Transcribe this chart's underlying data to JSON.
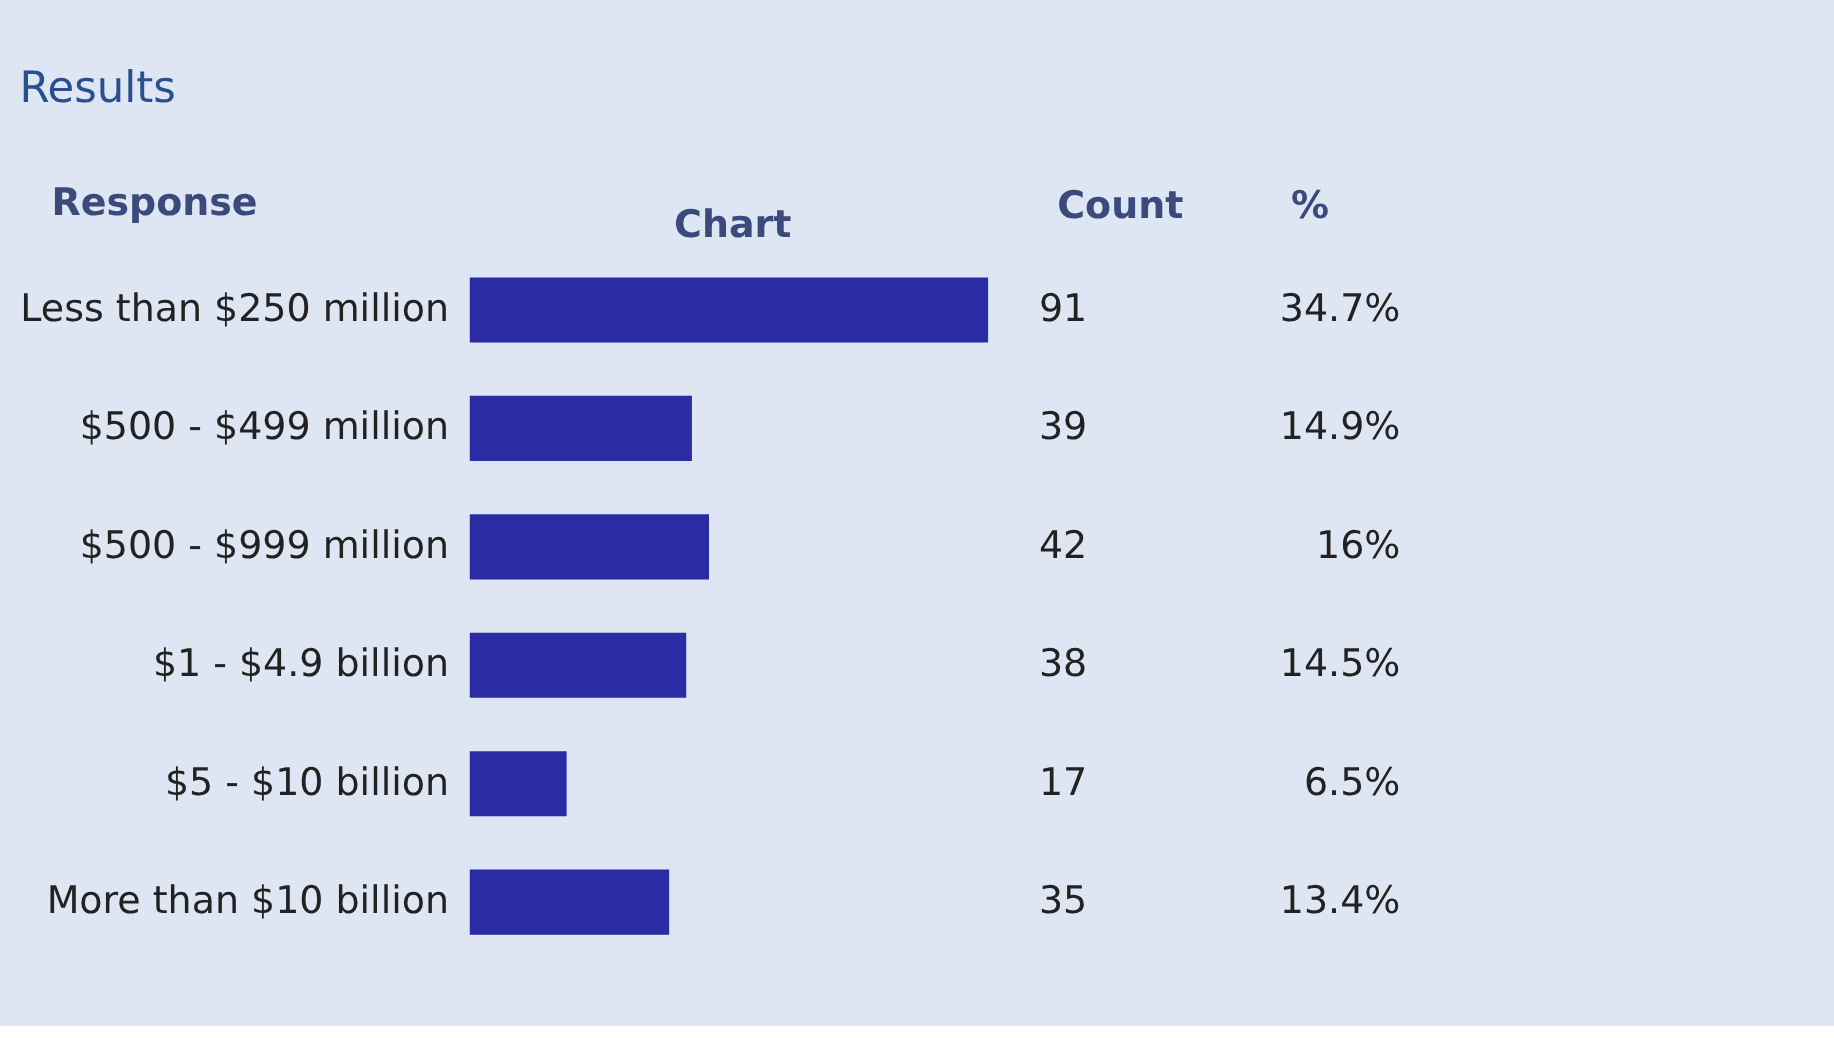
{
  "chart_data": {
    "type": "bar",
    "orientation": "horizontal",
    "title": "Results",
    "ylabel": "Response",
    "xlabel": "Chart",
    "categories": [
      "Less than $250 million",
      "$500 - $499 million",
      "$500 - $999 million",
      "$1 - $4.9 billion",
      "$5 - $10 billion",
      "More than $10 billion"
    ],
    "values": [
      91,
      39,
      42,
      38,
      17,
      35
    ],
    "color": "#2b2ba3",
    "xlim": [
      0,
      92
    ],
    "data_labels": true,
    "grid": false,
    "annotations": [
      "Count",
      "%",
      "34.7%",
      "14.9%",
      "16%",
      "14.5%",
      "6.5%",
      "13.4%"
    ]
  }
}
